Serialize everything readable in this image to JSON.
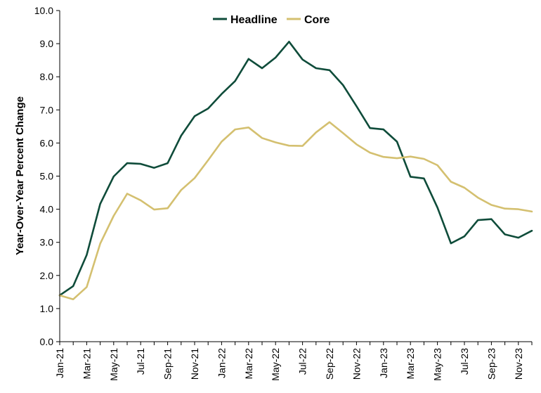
{
  "chart_data": {
    "type": "line",
    "title": "",
    "xlabel": "",
    "ylabel": "Year-Over-Year Percent Change",
    "ylim": [
      0,
      10
    ],
    "yticks": [
      "0.0",
      "1.0",
      "2.0",
      "3.0",
      "4.0",
      "5.0",
      "6.0",
      "7.0",
      "8.0",
      "9.0",
      "10.0"
    ],
    "legend_position": "top-center",
    "grid": false,
    "categories": [
      "Jan-21",
      "Feb-21",
      "Mar-21",
      "Apr-21",
      "May-21",
      "Jun-21",
      "Jul-21",
      "Aug-21",
      "Sep-21",
      "Oct-21",
      "Nov-21",
      "Dec-21",
      "Jan-22",
      "Feb-22",
      "Mar-22",
      "Apr-22",
      "May-22",
      "Jun-22",
      "Jul-22",
      "Aug-22",
      "Sep-22",
      "Oct-22",
      "Nov-22",
      "Dec-22",
      "Jan-23",
      "Feb-23",
      "Mar-23",
      "Apr-23",
      "May-23",
      "Jun-23",
      "Jul-23",
      "Aug-23",
      "Sep-23",
      "Oct-23",
      "Nov-23",
      "Dec-23"
    ],
    "xtick_labels": [
      "Jan-21",
      "Mar-21",
      "May-21",
      "Jul-21",
      "Sep-21",
      "Nov-21",
      "Jan-22",
      "Mar-22",
      "May-22",
      "Jul-22",
      "Sep-22",
      "Nov-22",
      "Jan-23",
      "Mar-23",
      "May-23",
      "Jul-23",
      "Sep-23",
      "Nov-23"
    ],
    "series": [
      {
        "name": "Headline",
        "color": "#0f4c3a",
        "values": [
          1.4,
          1.68,
          2.62,
          4.16,
          4.99,
          5.39,
          5.37,
          5.25,
          5.39,
          6.22,
          6.81,
          7.04,
          7.48,
          7.87,
          8.54,
          8.26,
          8.58,
          9.06,
          8.52,
          8.26,
          8.2,
          7.75,
          7.11,
          6.45,
          6.41,
          6.04,
          4.98,
          4.93,
          4.05,
          2.97,
          3.18,
          3.67,
          3.7,
          3.24,
          3.14,
          3.35
        ]
      },
      {
        "name": "Core",
        "color": "#d4c070",
        "values": [
          1.4,
          1.28,
          1.65,
          2.96,
          3.8,
          4.47,
          4.27,
          3.99,
          4.03,
          4.58,
          4.94,
          5.48,
          6.04,
          6.41,
          6.47,
          6.15,
          6.02,
          5.92,
          5.91,
          6.32,
          6.63,
          6.3,
          5.96,
          5.71,
          5.58,
          5.54,
          5.59,
          5.52,
          5.33,
          4.83,
          4.65,
          4.35,
          4.13,
          4.02,
          4.0,
          3.93
        ]
      }
    ]
  }
}
